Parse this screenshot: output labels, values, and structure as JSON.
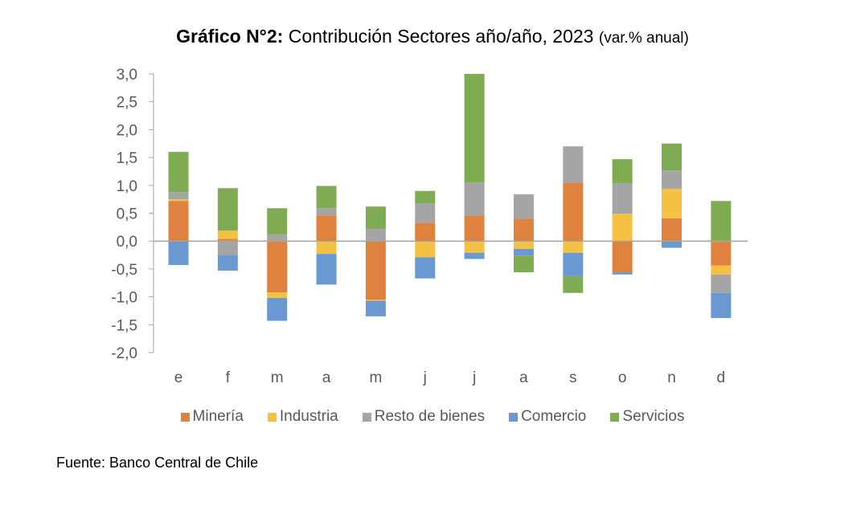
{
  "title": {
    "bold": "Gráfico N°2:",
    "main": " Contribución Sectores año/año, 2023 ",
    "small": "(var.% anual)"
  },
  "source": "Fuente: Banco Central de Chile",
  "chart_data": {
    "type": "bar",
    "stacked": true,
    "title": "Gráfico N°2: Contribución Sectores año/año, 2023 (var.% anual)",
    "xlabel": "",
    "ylabel": "",
    "ylim": [
      -2.0,
      3.0
    ],
    "yticks": [
      3.0,
      2.5,
      2.0,
      1.5,
      1.0,
      0.5,
      0.0,
      -0.5,
      -1.0,
      -1.5,
      -2.0
    ],
    "ytick_labels": [
      "3,0",
      "2,5",
      "2,0",
      "1,5",
      "1,0",
      "0,5",
      "0,0",
      "-0,5",
      "-1,0",
      "-1,5",
      "-2,0"
    ],
    "grid": false,
    "legend_position": "bottom",
    "categories": [
      "e",
      "f",
      "m",
      "a",
      "m",
      "j",
      "j",
      "a",
      "s",
      "o",
      "n",
      "d"
    ],
    "series": [
      {
        "name": "Minería",
        "color": "#E0823F",
        "values": [
          0.72,
          0.04,
          -0.92,
          0.46,
          -1.05,
          0.33,
          0.46,
          0.4,
          1.05,
          -0.56,
          0.41,
          -0.44
        ]
      },
      {
        "name": "Industria",
        "color": "#F4C242",
        "values": [
          0.03,
          0.15,
          -0.1,
          -0.23,
          -0.02,
          -0.29,
          -0.21,
          -0.14,
          -0.21,
          0.49,
          0.53,
          -0.16
        ]
      },
      {
        "name": "Resto de bienes",
        "color": "#A5A5A5",
        "values": [
          0.13,
          -0.25,
          0.12,
          0.13,
          0.22,
          0.35,
          0.59,
          0.44,
          0.65,
          0.55,
          0.33,
          -0.33
        ]
      },
      {
        "name": "Comercio",
        "color": "#6A99D1",
        "values": [
          -0.43,
          -0.28,
          -0.41,
          -0.55,
          -0.28,
          -0.38,
          -0.11,
          -0.12,
          -0.42,
          -0.04,
          -0.12,
          -0.45
        ]
      },
      {
        "name": "Servicios",
        "color": "#7FAB53",
        "values": [
          0.72,
          0.76,
          0.47,
          0.4,
          0.4,
          0.22,
          1.95,
          -0.3,
          -0.3,
          0.43,
          0.48,
          0.72
        ]
      }
    ]
  }
}
